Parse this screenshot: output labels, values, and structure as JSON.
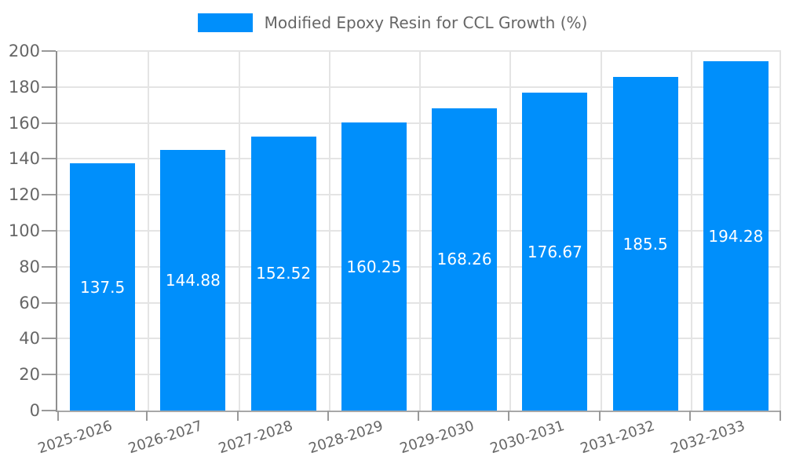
{
  "chart_data": {
    "type": "bar",
    "title": "Modified Epoxy Resin for CCL Growth (%)",
    "categories": [
      "2025-2026",
      "2026-2027",
      "2027-2028",
      "2028-2029",
      "2029-2030",
      "2030-2031",
      "2031-2032",
      "2032-2033"
    ],
    "values": [
      137.5,
      144.88,
      152.52,
      160.25,
      168.26,
      176.67,
      185.5,
      194.28
    ],
    "ylabel": "",
    "xlabel": "",
    "ylim": [
      0,
      200
    ],
    "ytick_step": 20,
    "grid": true,
    "legend_position": "top-center",
    "x_label_rotation_deg": -18,
    "colors": {
      "bar": "#008ffb",
      "value_label": "#ffffff",
      "axis_text": "#666666",
      "grid_line": "#e4e4e4",
      "tick_mark": "#999999",
      "y_axis_line": "#8f8f8f",
      "x_axis_line": "#a8a8a8"
    }
  }
}
